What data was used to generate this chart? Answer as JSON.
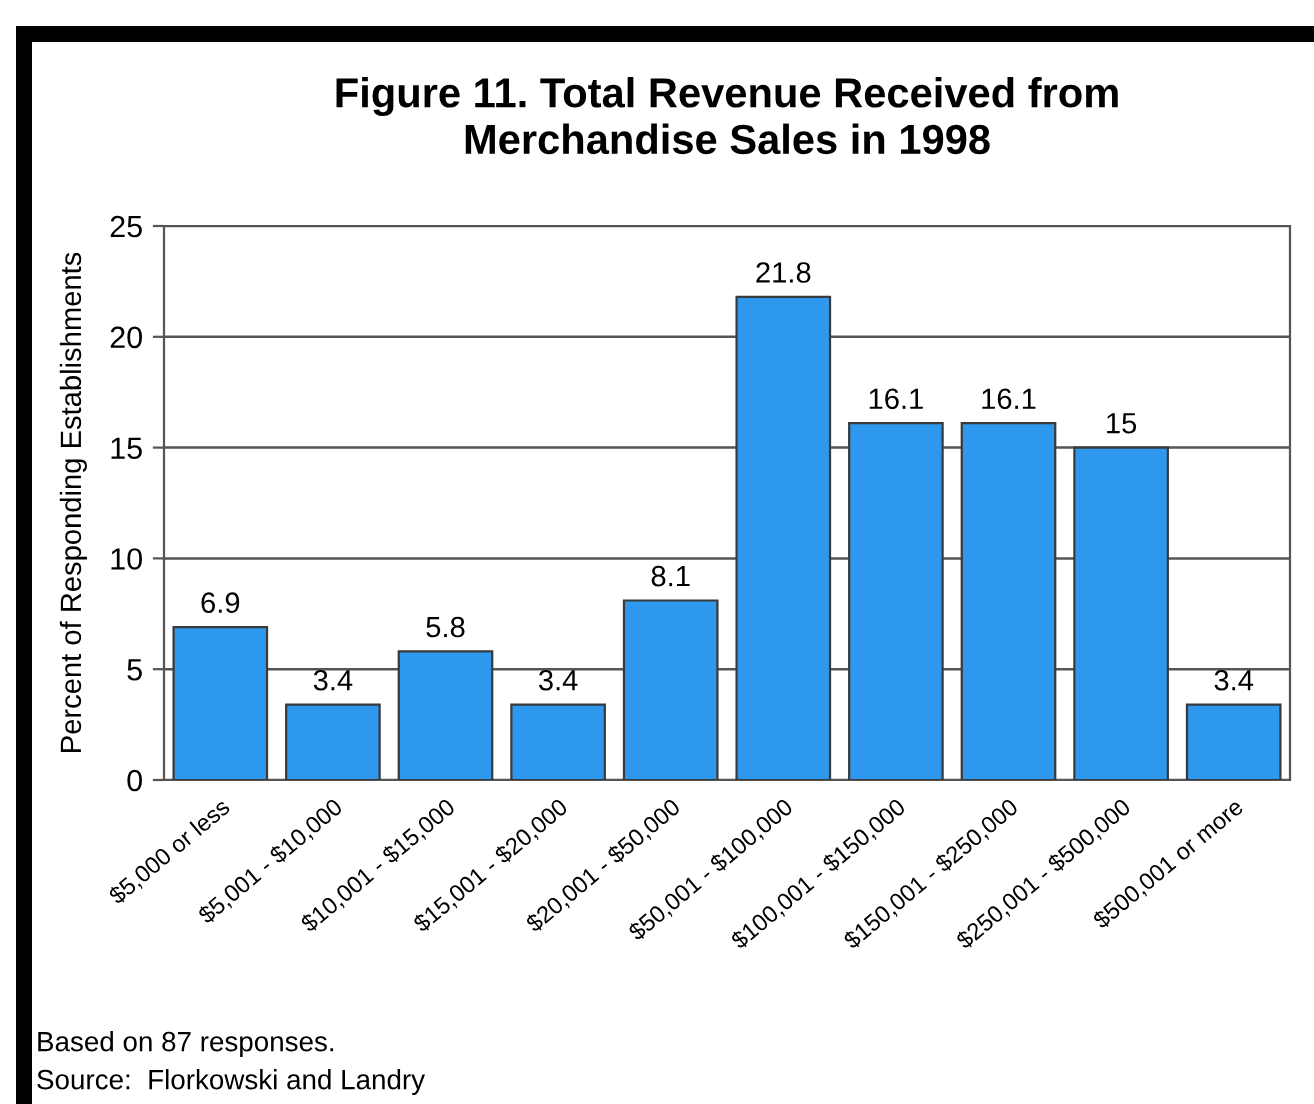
{
  "chart_data": {
    "type": "bar",
    "title": "Figure 11. Total Revenue Received from\nMerchandise Sales in 1998",
    "ylabel": "Percent of Responding Establishments",
    "categories": [
      "$5,000 or less",
      "$5,001 - $10,000",
      "$10,001 - $15,000",
      "$15,001 - $20,000",
      "$20,001 - $50,000",
      "$50,001 - $100,000",
      "$100,001 - $150,000",
      "$150,001 - $250,000",
      "$250,001 - $500,000",
      "$500,001 or more"
    ],
    "values": [
      6.9,
      3.4,
      5.8,
      3.4,
      8.1,
      21.8,
      16.1,
      16.1,
      15,
      3.4
    ],
    "color": "#2e98ee",
    "ylim": [
      0,
      25
    ],
    "yticks": [
      0,
      5,
      10,
      15,
      20,
      25
    ],
    "grid": "y",
    "data_labels": true,
    "annotations": [
      "Based on 87 responses.",
      "Source:  Florkowski and Landry"
    ]
  }
}
